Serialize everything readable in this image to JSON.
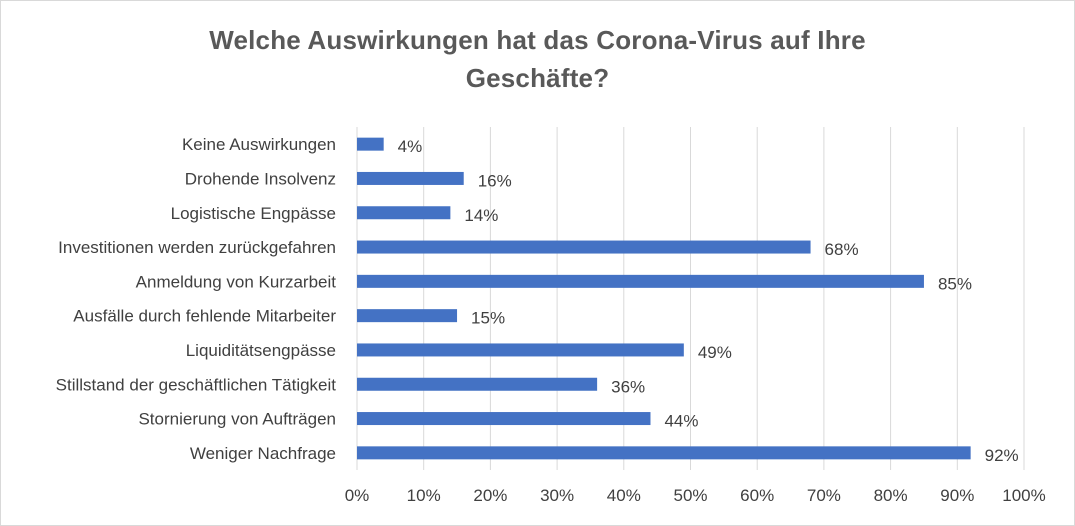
{
  "chart_data": {
    "type": "bar",
    "orientation": "horizontal",
    "title_lines": [
      "Welche Auswirkungen hat das Corona-Virus auf Ihre",
      "Geschäfte?"
    ],
    "categories": [
      "Keine Auswirkungen",
      "Drohende Insolvenz",
      "Logistische Engpässe",
      "Investitionen werden zurückgefahren",
      "Anmeldung von Kurzarbeit",
      "Ausfälle durch fehlende Mitarbeiter",
      "Liquiditätsengpässe",
      "Stillstand der geschäftlichen Tätigkeit",
      "Stornierung von Aufträgen",
      "Weniger Nachfrage"
    ],
    "values": [
      4,
      16,
      14,
      68,
      85,
      15,
      49,
      36,
      44,
      92
    ],
    "value_labels": [
      "4%",
      "16%",
      "14%",
      "68%",
      "85%",
      "15%",
      "49%",
      "36%",
      "44%",
      "92%"
    ],
    "x_ticks": [
      "0%",
      "10%",
      "20%",
      "30%",
      "40%",
      "50%",
      "60%",
      "70%",
      "80%",
      "90%",
      "100%"
    ],
    "xlim": [
      0,
      100
    ],
    "grid": "vertical",
    "bar_color": "#4472c4"
  }
}
